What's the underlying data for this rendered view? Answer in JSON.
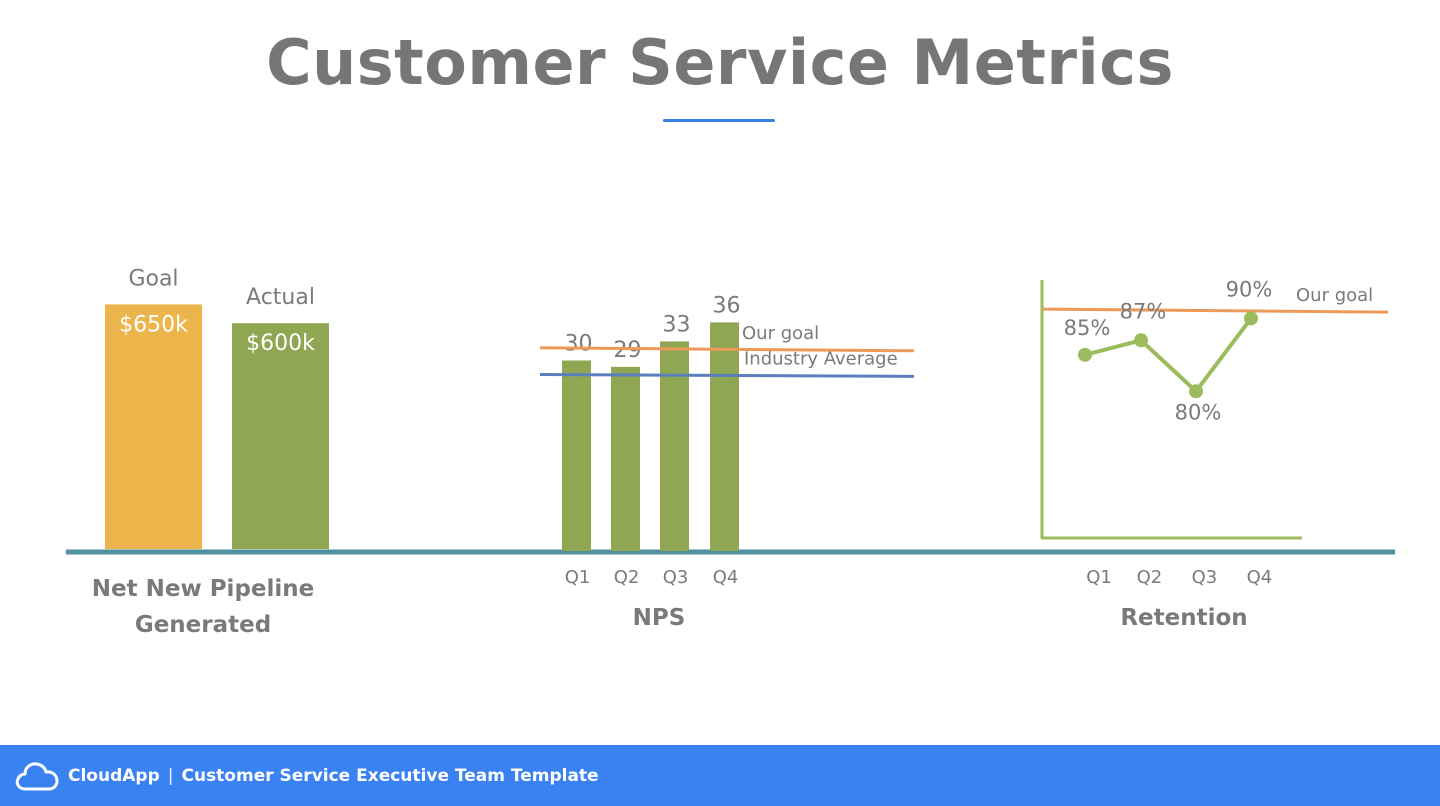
{
  "title": "Customer Service Metrics",
  "footer": {
    "brand": "CloudApp",
    "separator": "|",
    "subtitle": "Customer Service Executive Team Template",
    "icon": "cloud-icon"
  },
  "colors": {
    "goal_bar": "#ebb54c",
    "bar": "#8fa652",
    "goal_line": "#ec9a59",
    "industry_line": "#5a7fbd",
    "baseline": "#4f8fa0",
    "retention_line": "#9cbb5c"
  },
  "chart_data": [
    {
      "type": "bar",
      "title": "Net New Pipeline Generated",
      "title_lines": [
        "Net New Pipeline",
        "Generated"
      ],
      "categories": [
        "Goal",
        "Actual"
      ],
      "values": [
        650,
        600
      ],
      "value_labels": [
        "$650k",
        "$600k"
      ],
      "ylim": [
        0,
        760
      ]
    },
    {
      "type": "bar",
      "title": "NPS",
      "categories": [
        "Q1",
        "Q2",
        "Q3",
        "Q4"
      ],
      "values": [
        30,
        29,
        33,
        36
      ],
      "ylim": [
        0,
        42
      ],
      "reference_lines": [
        {
          "name": "Our goal",
          "start": 32,
          "end": 32
        },
        {
          "name": "Industry Average",
          "start": 27.8,
          "end": 27.5
        }
      ]
    },
    {
      "type": "line",
      "title": "Retention",
      "categories": [
        "Q1",
        "Q2",
        "Q3",
        "Q4"
      ],
      "values": [
        85,
        87,
        80,
        90
      ],
      "value_labels": [
        "85%",
        "87%",
        "80%",
        "90%"
      ],
      "ylim": [
        60,
        95
      ],
      "reference_lines": [
        {
          "name": "Our goal",
          "start": 91,
          "end": 91
        }
      ]
    }
  ]
}
